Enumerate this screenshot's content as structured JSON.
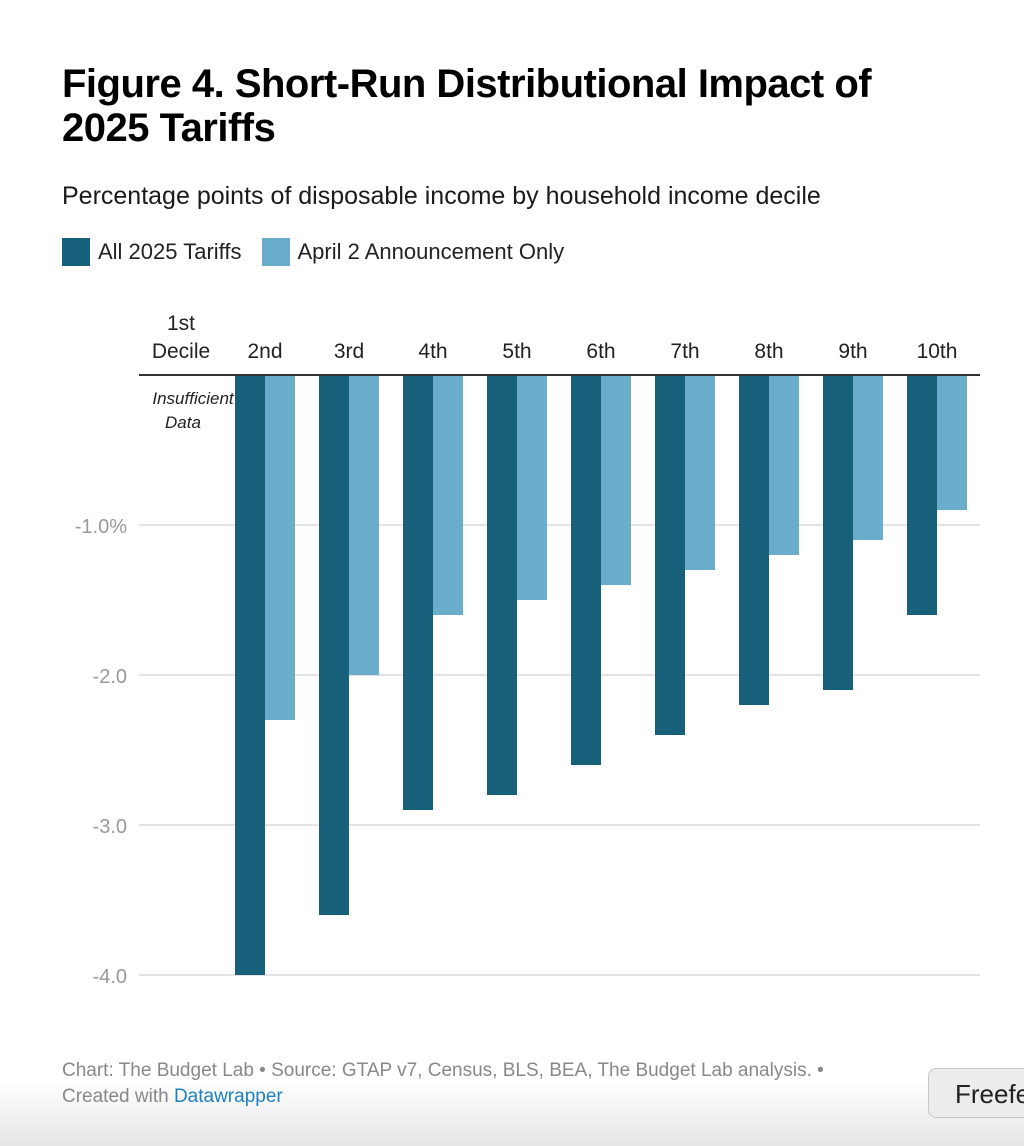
{
  "chart_data": {
    "type": "bar",
    "title": "Figure 4. Short-Run Distributional Impact of 2025 Tariffs",
    "subtitle": "Percentage points of disposable income by household income decile",
    "categories": [
      "1st Decile",
      "2nd",
      "3rd",
      "4th",
      "5th",
      "6th",
      "7th",
      "8th",
      "9th",
      "10th"
    ],
    "series": [
      {
        "name": "All 2025 Tariffs",
        "color": "#17607a",
        "values": [
          null,
          -4.0,
          -3.6,
          -2.9,
          -2.8,
          -2.6,
          -2.4,
          -2.2,
          -2.1,
          -1.6
        ]
      },
      {
        "name": "April 2 Announcement Only",
        "color": "#6aadcb",
        "values": [
          null,
          -2.3,
          -2.0,
          -1.6,
          -1.5,
          -1.4,
          -1.3,
          -1.2,
          -1.1,
          -0.9
        ]
      }
    ],
    "annotation": "Insufficient Data",
    "ylim": [
      -4.0,
      0
    ],
    "yticks": [
      -1.0,
      -2.0,
      -3.0,
      -4.0
    ],
    "ytick_labels": [
      "-1.0%",
      "-2.0",
      "-3.0",
      "-4.0"
    ],
    "grid": true,
    "legend": "top-left"
  },
  "footer": {
    "text": "Chart: The Budget Lab • Source: GTAP v7, Census, BLS, BEA, The Budget Lab analysis. •",
    "created": "Created with",
    "link": "Datawrapper"
  },
  "tooltip": "Freefe"
}
